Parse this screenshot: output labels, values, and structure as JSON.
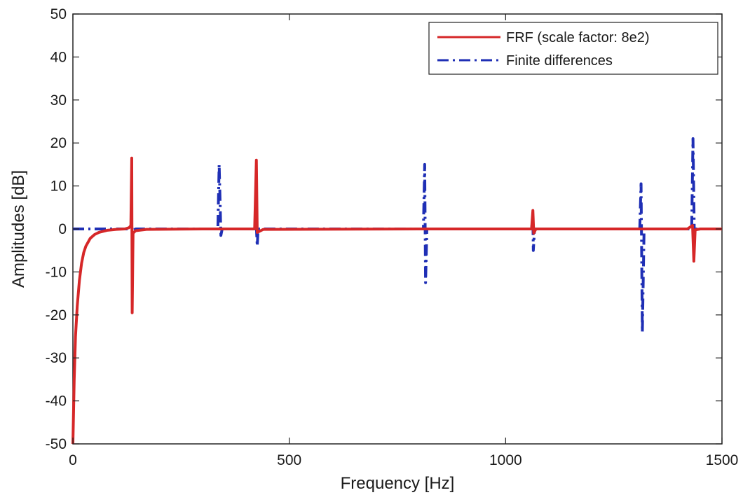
{
  "chart_data": {
    "type": "line",
    "title": "",
    "xlabel": "Frequency [Hz]",
    "ylabel": "Amplitudes [dB]",
    "xlim": [
      0,
      1500
    ],
    "ylim": [
      -50,
      50
    ],
    "xticks": [
      0,
      500,
      1000,
      1500
    ],
    "yticks": [
      -50,
      -40,
      -30,
      -20,
      -10,
      0,
      10,
      20,
      30,
      40,
      50
    ],
    "grid": false,
    "legend_position": "top-right",
    "series": [
      {
        "name": "FRF (scale factor: 8e2)",
        "color": "#d62728",
        "style": "solid",
        "points": [
          [
            0,
            -50
          ],
          [
            3,
            -35
          ],
          [
            6,
            -25
          ],
          [
            10,
            -18
          ],
          [
            15,
            -12
          ],
          [
            20,
            -8
          ],
          [
            25,
            -5.5
          ],
          [
            30,
            -4
          ],
          [
            40,
            -2.2
          ],
          [
            50,
            -1.3
          ],
          [
            60,
            -0.8
          ],
          [
            80,
            -0.3
          ],
          [
            100,
            -0.1
          ],
          [
            120,
            0
          ],
          [
            130,
            0.3
          ],
          [
            134,
            0.8
          ],
          [
            136,
            16.5
          ],
          [
            137,
            -19.5
          ],
          [
            139,
            -1
          ],
          [
            145,
            -0.4
          ],
          [
            170,
            -0.1
          ],
          [
            300,
            0
          ],
          [
            420,
            0
          ],
          [
            424,
            16
          ],
          [
            426,
            -0.8
          ],
          [
            440,
            -0.1
          ],
          [
            800,
            0
          ],
          [
            1060,
            0
          ],
          [
            1063,
            4.3
          ],
          [
            1065,
            -1
          ],
          [
            1070,
            0
          ],
          [
            1420,
            0
          ],
          [
            1432,
            0.8
          ],
          [
            1435,
            -7.5
          ],
          [
            1438,
            -0.2
          ],
          [
            1450,
            0
          ],
          [
            1500,
            0
          ]
        ]
      },
      {
        "name": "Finite differences",
        "color": "#1f2fb5",
        "style": "dashdot",
        "points": [
          [
            0,
            0
          ],
          [
            130,
            0
          ],
          [
            136,
            0.5
          ],
          [
            138,
            -0.4
          ],
          [
            145,
            0
          ],
          [
            335,
            0
          ],
          [
            338,
            15
          ],
          [
            340,
            7
          ],
          [
            342,
            -1.5
          ],
          [
            345,
            0
          ],
          [
            420,
            0
          ],
          [
            424,
            0.5
          ],
          [
            426,
            -4
          ],
          [
            428,
            0
          ],
          [
            810,
            0
          ],
          [
            813,
            15
          ],
          [
            815,
            -12.5
          ],
          [
            818,
            0
          ],
          [
            1060,
            0
          ],
          [
            1063,
            3
          ],
          [
            1064,
            -5
          ],
          [
            1067,
            0
          ],
          [
            1310,
            0
          ],
          [
            1313,
            10.5
          ],
          [
            1316,
            -24
          ],
          [
            1320,
            0
          ],
          [
            1430,
            0
          ],
          [
            1433,
            21
          ],
          [
            1436,
            -0.5
          ],
          [
            1440,
            0
          ],
          [
            1500,
            0
          ]
        ]
      }
    ]
  }
}
